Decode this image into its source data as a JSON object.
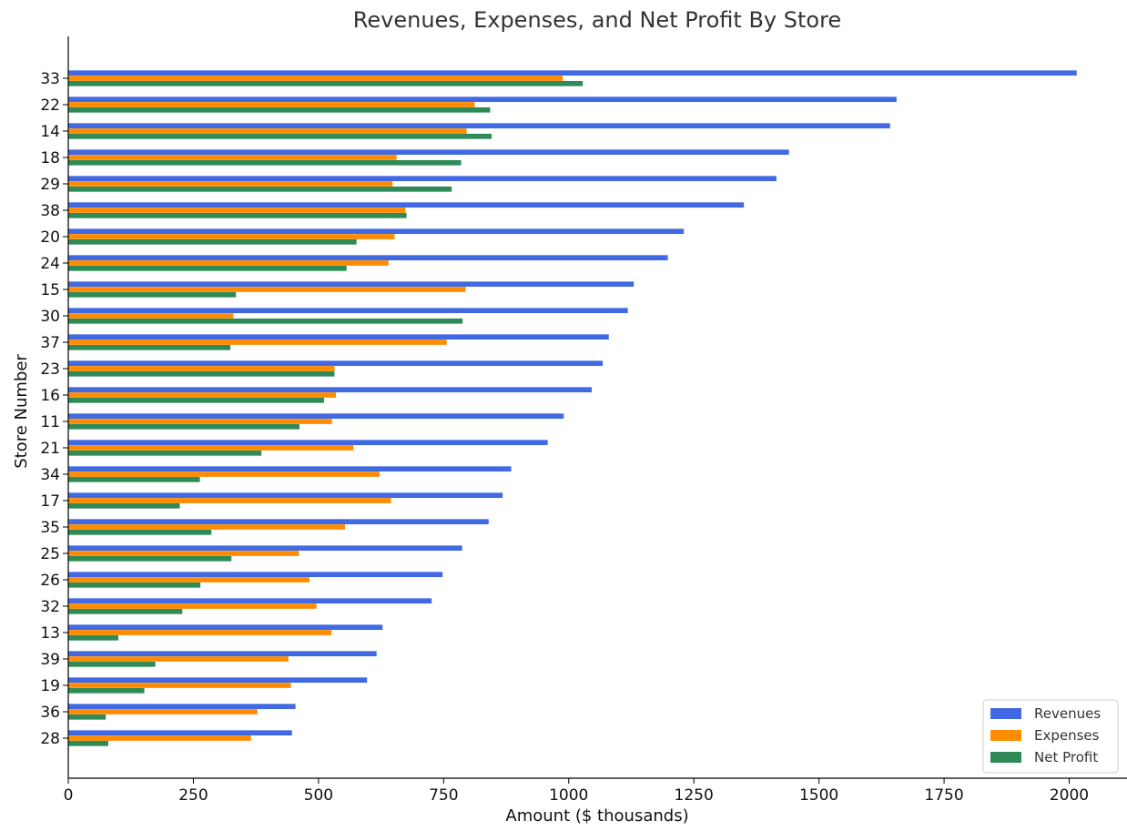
{
  "chart_data": {
    "type": "bar",
    "orientation": "horizontal",
    "title": "Revenues, Expenses, and Net Profit By Store",
    "xlabel": "Amount ($ thousands)",
    "ylabel": "Store Number",
    "xlim": [
      0,
      2100
    ],
    "x_ticks": [
      0,
      250,
      500,
      750,
      1000,
      1250,
      1500,
      1750,
      2000
    ],
    "grid": false,
    "legend_position": "bottom-right",
    "categories": [
      "33",
      "22",
      "14",
      "18",
      "29",
      "38",
      "20",
      "24",
      "15",
      "30",
      "37",
      "23",
      "16",
      "11",
      "21",
      "34",
      "17",
      "35",
      "25",
      "26",
      "32",
      "13",
      "39",
      "19",
      "36",
      "28"
    ],
    "series": [
      {
        "name": "Revenues",
        "color": "#4169e1",
        "values": [
          2015,
          1655,
          1642,
          1440,
          1415,
          1350,
          1230,
          1198,
          1130,
          1118,
          1080,
          1068,
          1046,
          990,
          958,
          885,
          868,
          840,
          787,
          748,
          726,
          628,
          616,
          597,
          454,
          447
        ]
      },
      {
        "name": "Expenses",
        "color": "#ff8c00",
        "values": [
          988,
          812,
          796,
          656,
          648,
          674,
          652,
          640,
          794,
          330,
          756,
          532,
          535,
          527,
          570,
          622,
          645,
          553,
          461,
          482,
          496,
          526,
          440,
          445,
          378,
          365
        ]
      },
      {
        "name": "Net Profit",
        "color": "#2e8b57",
        "values": [
          1028,
          843,
          846,
          785,
          766,
          676,
          576,
          556,
          335,
          788,
          324,
          532,
          511,
          462,
          386,
          263,
          223,
          286,
          326,
          264,
          228,
          100,
          174,
          152,
          75,
          80
        ]
      }
    ]
  }
}
